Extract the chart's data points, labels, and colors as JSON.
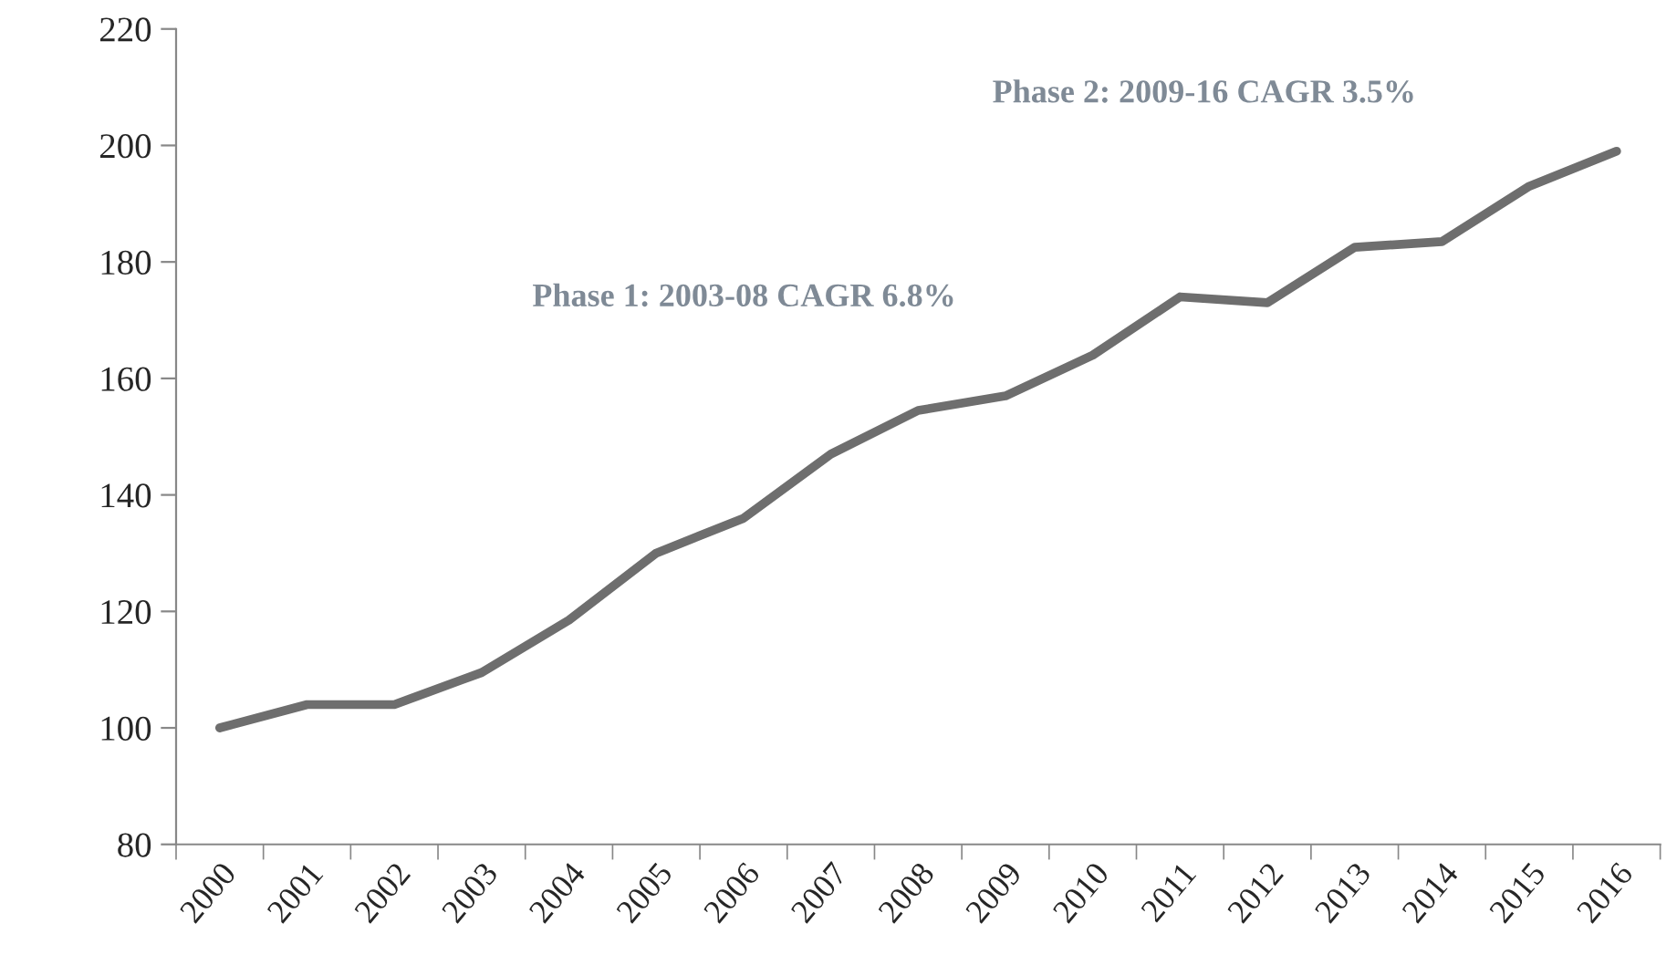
{
  "chart_data": {
    "type": "line",
    "categories": [
      "2000",
      "2001",
      "2002",
      "2003",
      "2004",
      "2005",
      "2006",
      "2007",
      "2008",
      "2009",
      "2010",
      "2011",
      "2012",
      "2013",
      "2014",
      "2015",
      "2016"
    ],
    "series": [
      {
        "color": "#6e6e6e",
        "values": [
          100,
          104,
          104,
          109.5,
          118.5,
          130,
          136,
          147,
          154.5,
          157,
          164,
          174,
          173,
          182.5,
          183.5,
          193,
          199
        ]
      }
    ],
    "ylim": [
      80,
      220
    ],
    "yticks": [
      80,
      100,
      120,
      140,
      160,
      180,
      200,
      220
    ],
    "annotations": [
      "Phase 1: 2003-08 CAGR 6.8%",
      "Phase 2: 2009-16 CAGR 3.5%"
    ],
    "grid": false,
    "legend": false,
    "marker": "none",
    "line_style": "solid"
  }
}
